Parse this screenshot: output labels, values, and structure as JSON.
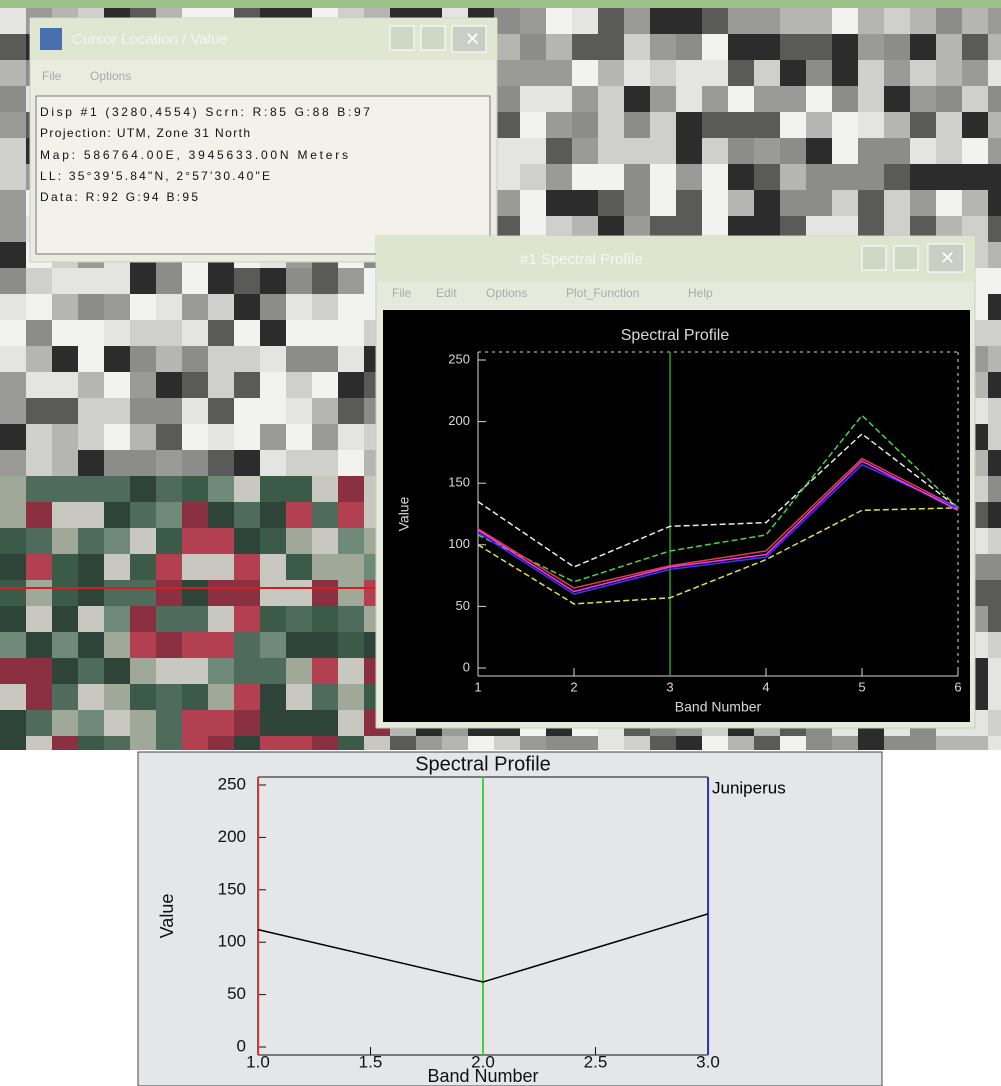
{
  "windows": [
    {
      "title": "Cursor Location / Value",
      "menu": [
        "File",
        "Options"
      ],
      "lines": [
        "Disp #1 (3280,4554) Scrn: R:85 G:88 B:97",
        "Projection: UTM, Zone 31 North",
        "Map: 586764.00E, 3945633.00N Meters",
        "LL: 35°39'5.84\"N, 2°57'30.40\"E",
        "Data: R:92 G:94 B:95"
      ]
    },
    {
      "title": "#1 Spectral Profile",
      "menu": [
        "File",
        "Edit",
        "Options",
        "Plot_Function",
        "Help"
      ]
    }
  ],
  "chart_data": [
    {
      "type": "line",
      "title": "Spectral Profile",
      "x_label": "Band Number",
      "y_label": "Value",
      "x": [
        1,
        2,
        3,
        4,
        5,
        6
      ],
      "xlim": [
        1,
        6
      ],
      "xticks": [
        1,
        2,
        3,
        4,
        5,
        6
      ],
      "ylim": [
        0,
        250
      ],
      "yticks": [
        0,
        50,
        100,
        150,
        200,
        250
      ],
      "cursor": {
        "x": 3,
        "color": "#2e9a2e"
      },
      "series": [
        {
          "color": "#e8e8e8",
          "values": [
            135,
            82,
            115,
            118,
            190,
            130
          ]
        },
        {
          "color": "#4bd04b",
          "values": [
            108,
            70,
            95,
            108,
            205,
            130
          ]
        },
        {
          "color": "#e0e050",
          "values": [
            100,
            52,
            57,
            88,
            128,
            130
          ]
        },
        {
          "color": "#e04040",
          "values": [
            113,
            65,
            83,
            95,
            170,
            130
          ]
        },
        {
          "color": "#3a3aff",
          "values": [
            110,
            60,
            80,
            90,
            165,
            130
          ]
        },
        {
          "color": "#ff30ff",
          "values": [
            112,
            62,
            82,
            92,
            168,
            128
          ]
        }
      ]
    },
    {
      "type": "line",
      "title": "Spectral Profile",
      "x_label": "Band Number",
      "y_label": "Value",
      "x": [
        1,
        2,
        3
      ],
      "xlim": [
        1,
        3
      ],
      "xticks": [
        {
          "value": 1,
          "label": "1.0"
        },
        {
          "value": 1.5,
          "label": "1.5"
        },
        {
          "value": 2,
          "label": "2.0"
        },
        {
          "value": 2.5,
          "label": "2.5"
        },
        {
          "value": 3,
          "label": "3.0"
        }
      ],
      "ylim": [
        0,
        250
      ],
      "yticks": [
        0,
        50,
        100,
        150,
        200,
        250
      ],
      "band_lines": [
        {
          "x": 1,
          "color": "#e03030"
        },
        {
          "x": 2,
          "color": "#40d040"
        },
        {
          "x": 3,
          "color": "#3030e0"
        }
      ],
      "series": [
        {
          "name": "Juniperus",
          "color": "#000000",
          "values": [
            112,
            62,
            127
          ]
        }
      ]
    }
  ]
}
